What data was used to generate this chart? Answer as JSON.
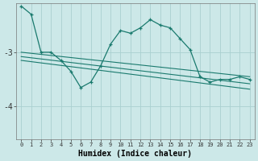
{
  "bg_color": "#cce8e8",
  "grid_color": "#aad0d0",
  "line_color": "#1a7a6e",
  "xlabel": "Humidex (Indice chaleur)",
  "ytick_vals": [
    -4,
    -3
  ],
  "ytick_labels": [
    "-4",
    "-3"
  ],
  "xlim": [
    -0.5,
    23.5
  ],
  "ylim": [
    -4.6,
    -2.1
  ],
  "figsize": [
    3.2,
    2.0
  ],
  "dpi": 100,
  "series1": {
    "x": [
      0,
      1,
      2,
      3,
      4,
      5,
      6,
      7,
      8,
      9,
      10,
      11,
      12,
      13,
      14,
      15,
      16,
      17,
      18,
      19,
      20,
      21,
      22,
      23
    ],
    "y": [
      -2.15,
      -2.3,
      -3.0,
      -3.0,
      -3.15,
      -3.35,
      -3.65,
      -3.55,
      -3.25,
      -2.85,
      -2.6,
      -2.65,
      -2.55,
      -2.4,
      -2.5,
      -2.55,
      -2.75,
      -2.95,
      -3.45,
      -3.55,
      -3.5,
      -3.5,
      -3.45,
      -3.5
    ]
  },
  "regression1": {
    "x": [
      0,
      23
    ],
    "y": [
      -3.0,
      -3.45
    ]
  },
  "regression2": {
    "x": [
      0,
      23
    ],
    "y": [
      -3.08,
      -3.58
    ]
  },
  "regression3": {
    "x": [
      0,
      23
    ],
    "y": [
      -3.15,
      -3.68
    ]
  }
}
